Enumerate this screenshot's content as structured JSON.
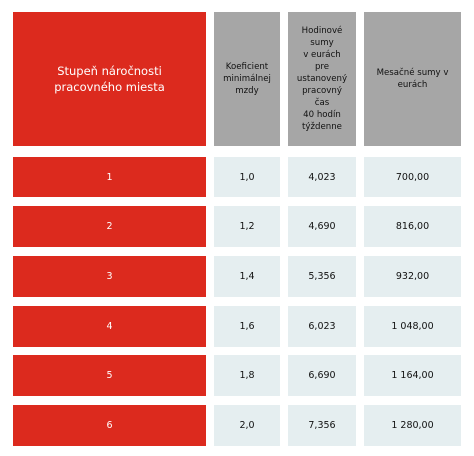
{
  "table": {
    "headers": {
      "level": "Stupeň náročnosti pracovného miesta",
      "coefficient": "Koeficient\nminimálnej\nmzdy",
      "hourly": "Hodinové\nsumy\nv eurách\npre\nustanovený\npracovný\nčas\n40 hodín\ntýždenne",
      "monthly": "Mesačné sumy v\neurách"
    },
    "rows": [
      {
        "level": "1",
        "coefficient": "1,0",
        "hourly": "4,023",
        "monthly": "700,00"
      },
      {
        "level": "2",
        "coefficient": "1,2",
        "hourly": "4,690",
        "monthly": "816,00"
      },
      {
        "level": "3",
        "coefficient": "1,4",
        "hourly": "5,356",
        "monthly": "932,00"
      },
      {
        "level": "4",
        "coefficient": "1,6",
        "hourly": "6,023",
        "monthly": "1 048,00"
      },
      {
        "level": "5",
        "coefficient": "1,8",
        "hourly": "6,690",
        "monthly": "1 164,00"
      },
      {
        "level": "6",
        "coefficient": "2,0",
        "hourly": "7,356",
        "monthly": "1 280,00"
      }
    ],
    "colors": {
      "red": "#dc2a1e",
      "grey": "#a6a6a6",
      "light": "#e5eef0"
    }
  }
}
